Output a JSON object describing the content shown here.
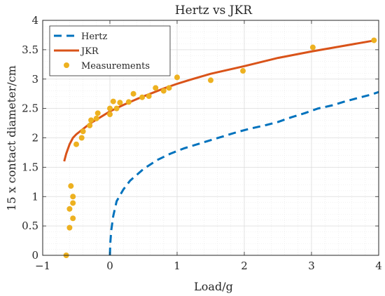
{
  "chart_data": {
    "type": "line",
    "title": "Hertz vs JKR",
    "xlabel": "Load/g",
    "ylabel": "15 x contact diameter/cm",
    "xlim": [
      -1,
      4
    ],
    "ylim": [
      0,
      4
    ],
    "xticks": [
      -1,
      0,
      1,
      2,
      3,
      4
    ],
    "yticks": [
      0,
      0.5,
      1,
      1.5,
      2,
      2.5,
      3,
      3.5,
      4
    ],
    "grid": true,
    "minor_grid": true,
    "legend_position": "top-left",
    "series": [
      {
        "name": "Hertz",
        "style": "dashed",
        "color": "#0072BD",
        "x": [
          0,
          0.005,
          0.02,
          0.05,
          0.1,
          0.2,
          0.3,
          0.5,
          0.7,
          0.9,
          1.1,
          1.3,
          1.5,
          1.7,
          1.9,
          2.1,
          2.3,
          2.5,
          2.7,
          2.9,
          3.1,
          3.3,
          3.5,
          3.7,
          3.9,
          4.0
        ],
        "y": [
          0,
          0.2,
          0.42,
          0.67,
          0.92,
          1.12,
          1.27,
          1.47,
          1.62,
          1.73,
          1.82,
          1.89,
          1.96,
          2.03,
          2.1,
          2.16,
          2.21,
          2.27,
          2.35,
          2.42,
          2.5,
          2.55,
          2.62,
          2.68,
          2.74,
          2.78
        ]
      },
      {
        "name": "JKR",
        "style": "solid",
        "color": "#D95319",
        "x": [
          -0.68,
          -0.65,
          -0.6,
          -0.55,
          -0.5,
          -0.4,
          -0.3,
          -0.2,
          -0.1,
          0,
          0.2,
          0.4,
          0.6,
          0.8,
          1.0,
          1.2,
          1.5,
          2.0,
          2.5,
          3.0,
          3.5,
          3.9
        ],
        "y": [
          1.6,
          1.73,
          1.89,
          2.0,
          2.06,
          2.15,
          2.24,
          2.31,
          2.38,
          2.45,
          2.56,
          2.66,
          2.75,
          2.84,
          2.92,
          2.99,
          3.09,
          3.22,
          3.36,
          3.47,
          3.57,
          3.65
        ]
      },
      {
        "name": "Measurements",
        "style": "markers",
        "color": "#EDB120",
        "x": [
          -0.65,
          -0.6,
          -0.6,
          -0.58,
          -0.55,
          -0.55,
          -0.55,
          -0.5,
          -0.42,
          -0.4,
          -0.3,
          -0.28,
          -0.2,
          -0.18,
          0,
          0,
          0.05,
          0.1,
          0.15,
          0.28,
          0.35,
          0.48,
          0.58,
          0.68,
          0.8,
          0.88,
          1.0,
          1.5,
          1.98,
          3.02,
          3.93
        ],
        "y": [
          0,
          0.47,
          0.79,
          1.18,
          0.63,
          0.89,
          1.0,
          1.89,
          2.0,
          2.11,
          2.21,
          2.3,
          2.33,
          2.42,
          2.4,
          2.5,
          2.62,
          2.5,
          2.6,
          2.61,
          2.75,
          2.69,
          2.71,
          2.85,
          2.8,
          2.85,
          3.03,
          2.98,
          3.14,
          3.54,
          3.66
        ]
      }
    ]
  }
}
